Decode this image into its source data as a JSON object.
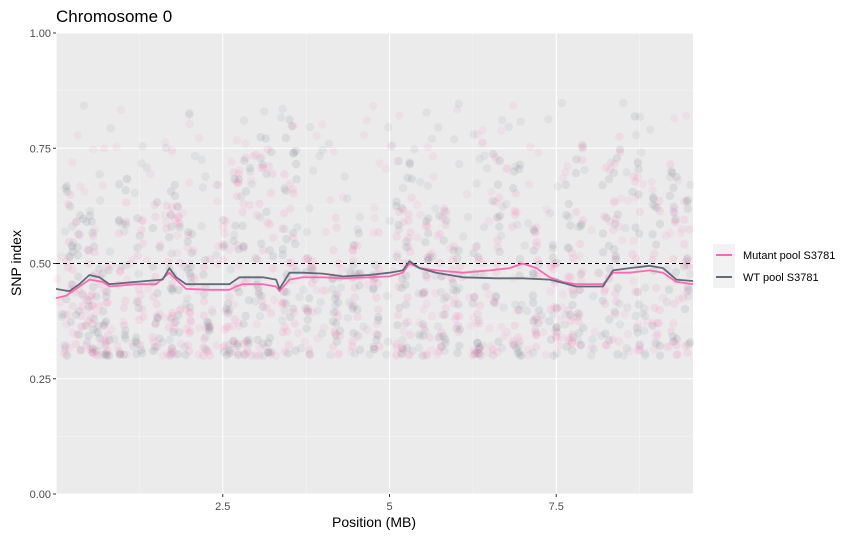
{
  "chart_data": {
    "type": "line",
    "title": "Chromosome 0",
    "xlabel": "Position (MB)",
    "ylabel": "SNP index",
    "xlim": [
      0,
      9.55
    ],
    "ylim": [
      0,
      1
    ],
    "x_ticks": [
      2.5,
      5,
      7.5
    ],
    "x_tick_labels": [
      "2.5",
      "5",
      "7.5"
    ],
    "y_ticks": [
      0,
      0.25,
      0.5,
      0.75,
      1
    ],
    "y_tick_labels": [
      "0.00",
      "0.25",
      "0.50",
      "0.75",
      "1.00"
    ],
    "grid": true,
    "background_color": "#ebebeb",
    "reference_line": {
      "y": 0.5,
      "style": "dashed",
      "color": "#000000"
    },
    "legend_position": "right",
    "series": [
      {
        "name": "Mutant pool S3781",
        "color": "#ff69b4",
        "points": [
          [
            0,
            0.425
          ],
          [
            0.15,
            0.43
          ],
          [
            0.3,
            0.445
          ],
          [
            0.5,
            0.465
          ],
          [
            0.7,
            0.46
          ],
          [
            0.8,
            0.45
          ],
          [
            1.2,
            0.455
          ],
          [
            1.5,
            0.455
          ],
          [
            1.7,
            0.48
          ],
          [
            1.8,
            0.465
          ],
          [
            1.95,
            0.445
          ],
          [
            2.3,
            0.443
          ],
          [
            2.6,
            0.443
          ],
          [
            2.7,
            0.45
          ],
          [
            2.8,
            0.455
          ],
          [
            3.1,
            0.455
          ],
          [
            3.3,
            0.45
          ],
          [
            3.35,
            0.44
          ],
          [
            3.5,
            0.465
          ],
          [
            3.7,
            0.47
          ],
          [
            4.0,
            0.47
          ],
          [
            4.3,
            0.468
          ],
          [
            4.7,
            0.47
          ],
          [
            5.0,
            0.472
          ],
          [
            5.2,
            0.48
          ],
          [
            5.3,
            0.5
          ],
          [
            5.45,
            0.49
          ],
          [
            5.7,
            0.485
          ],
          [
            6.1,
            0.48
          ],
          [
            6.5,
            0.485
          ],
          [
            6.8,
            0.49
          ],
          [
            7.0,
            0.5
          ],
          [
            7.2,
            0.49
          ],
          [
            7.4,
            0.47
          ],
          [
            7.6,
            0.46
          ],
          [
            7.8,
            0.455
          ],
          [
            8.2,
            0.455
          ],
          [
            8.35,
            0.48
          ],
          [
            8.6,
            0.48
          ],
          [
            8.9,
            0.485
          ],
          [
            9.1,
            0.48
          ],
          [
            9.3,
            0.46
          ],
          [
            9.55,
            0.455
          ]
        ]
      },
      {
        "name": "WT pool S3781",
        "color": "#5f6b7a",
        "points": [
          [
            0,
            0.445
          ],
          [
            0.2,
            0.44
          ],
          [
            0.35,
            0.455
          ],
          [
            0.5,
            0.475
          ],
          [
            0.65,
            0.47
          ],
          [
            0.8,
            0.455
          ],
          [
            1.2,
            0.46
          ],
          [
            1.6,
            0.465
          ],
          [
            1.7,
            0.49
          ],
          [
            1.8,
            0.47
          ],
          [
            1.95,
            0.455
          ],
          [
            2.3,
            0.455
          ],
          [
            2.6,
            0.455
          ],
          [
            2.75,
            0.47
          ],
          [
            2.9,
            0.47
          ],
          [
            3.1,
            0.47
          ],
          [
            3.3,
            0.465
          ],
          [
            3.35,
            0.445
          ],
          [
            3.5,
            0.48
          ],
          [
            3.7,
            0.48
          ],
          [
            4.0,
            0.478
          ],
          [
            4.3,
            0.472
          ],
          [
            4.7,
            0.475
          ],
          [
            5.0,
            0.48
          ],
          [
            5.2,
            0.485
          ],
          [
            5.3,
            0.505
          ],
          [
            5.45,
            0.49
          ],
          [
            5.7,
            0.48
          ],
          [
            6.1,
            0.47
          ],
          [
            6.6,
            0.468
          ],
          [
            7.0,
            0.468
          ],
          [
            7.4,
            0.465
          ],
          [
            7.6,
            0.458
          ],
          [
            7.8,
            0.45
          ],
          [
            8.2,
            0.45
          ],
          [
            8.35,
            0.485
          ],
          [
            8.6,
            0.49
          ],
          [
            8.9,
            0.495
          ],
          [
            9.1,
            0.49
          ],
          [
            9.3,
            0.465
          ],
          [
            9.55,
            0.462
          ]
        ]
      }
    ],
    "scatter_clusters": [
      {
        "x": 0.2,
        "ymax": 0.75
      },
      {
        "x": 0.35,
        "ymax": 0.62
      },
      {
        "x": 0.5,
        "ymax": 0.65
      },
      {
        "x": 0.6,
        "ymax": 0.55
      },
      {
        "x": 0.75,
        "ymax": 0.5
      },
      {
        "x": 1.0,
        "ymax": 0.7
      },
      {
        "x": 1.25,
        "ymax": 0.6
      },
      {
        "x": 1.5,
        "ymax": 0.65
      },
      {
        "x": 1.7,
        "ymax": 0.82
      },
      {
        "x": 1.8,
        "ymax": 0.72
      },
      {
        "x": 2.0,
        "ymax": 0.6
      },
      {
        "x": 2.25,
        "ymax": 0.55
      },
      {
        "x": 2.55,
        "ymax": 0.65
      },
      {
        "x": 2.7,
        "ymax": 0.7
      },
      {
        "x": 2.85,
        "ymax": 0.75
      },
      {
        "x": 3.05,
        "ymax": 0.82
      },
      {
        "x": 3.2,
        "ymax": 0.78
      },
      {
        "x": 3.45,
        "ymax": 0.85
      },
      {
        "x": 3.55,
        "ymax": 0.84
      },
      {
        "x": 3.8,
        "ymax": 0.55
      },
      {
        "x": 4.2,
        "ymax": 0.6
      },
      {
        "x": 4.5,
        "ymax": 0.58
      },
      {
        "x": 4.8,
        "ymax": 0.62
      },
      {
        "x": 5.15,
        "ymax": 0.7
      },
      {
        "x": 5.3,
        "ymax": 0.72
      },
      {
        "x": 5.55,
        "ymax": 0.6
      },
      {
        "x": 5.8,
        "ymax": 0.62
      },
      {
        "x": 6.0,
        "ymax": 0.55
      },
      {
        "x": 6.3,
        "ymax": 0.6
      },
      {
        "x": 6.6,
        "ymax": 0.75
      },
      {
        "x": 6.9,
        "ymax": 0.72
      },
      {
        "x": 7.2,
        "ymax": 0.58
      },
      {
        "x": 7.45,
        "ymax": 0.55
      },
      {
        "x": 7.7,
        "ymax": 0.75
      },
      {
        "x": 7.85,
        "ymax": 0.82
      },
      {
        "x": 8.25,
        "ymax": 0.72
      },
      {
        "x": 8.4,
        "ymax": 0.8
      },
      {
        "x": 8.7,
        "ymax": 0.85
      },
      {
        "x": 9.0,
        "ymax": 0.68
      },
      {
        "x": 9.25,
        "ymax": 0.72
      },
      {
        "x": 9.45,
        "ymax": 0.65
      }
    ]
  }
}
